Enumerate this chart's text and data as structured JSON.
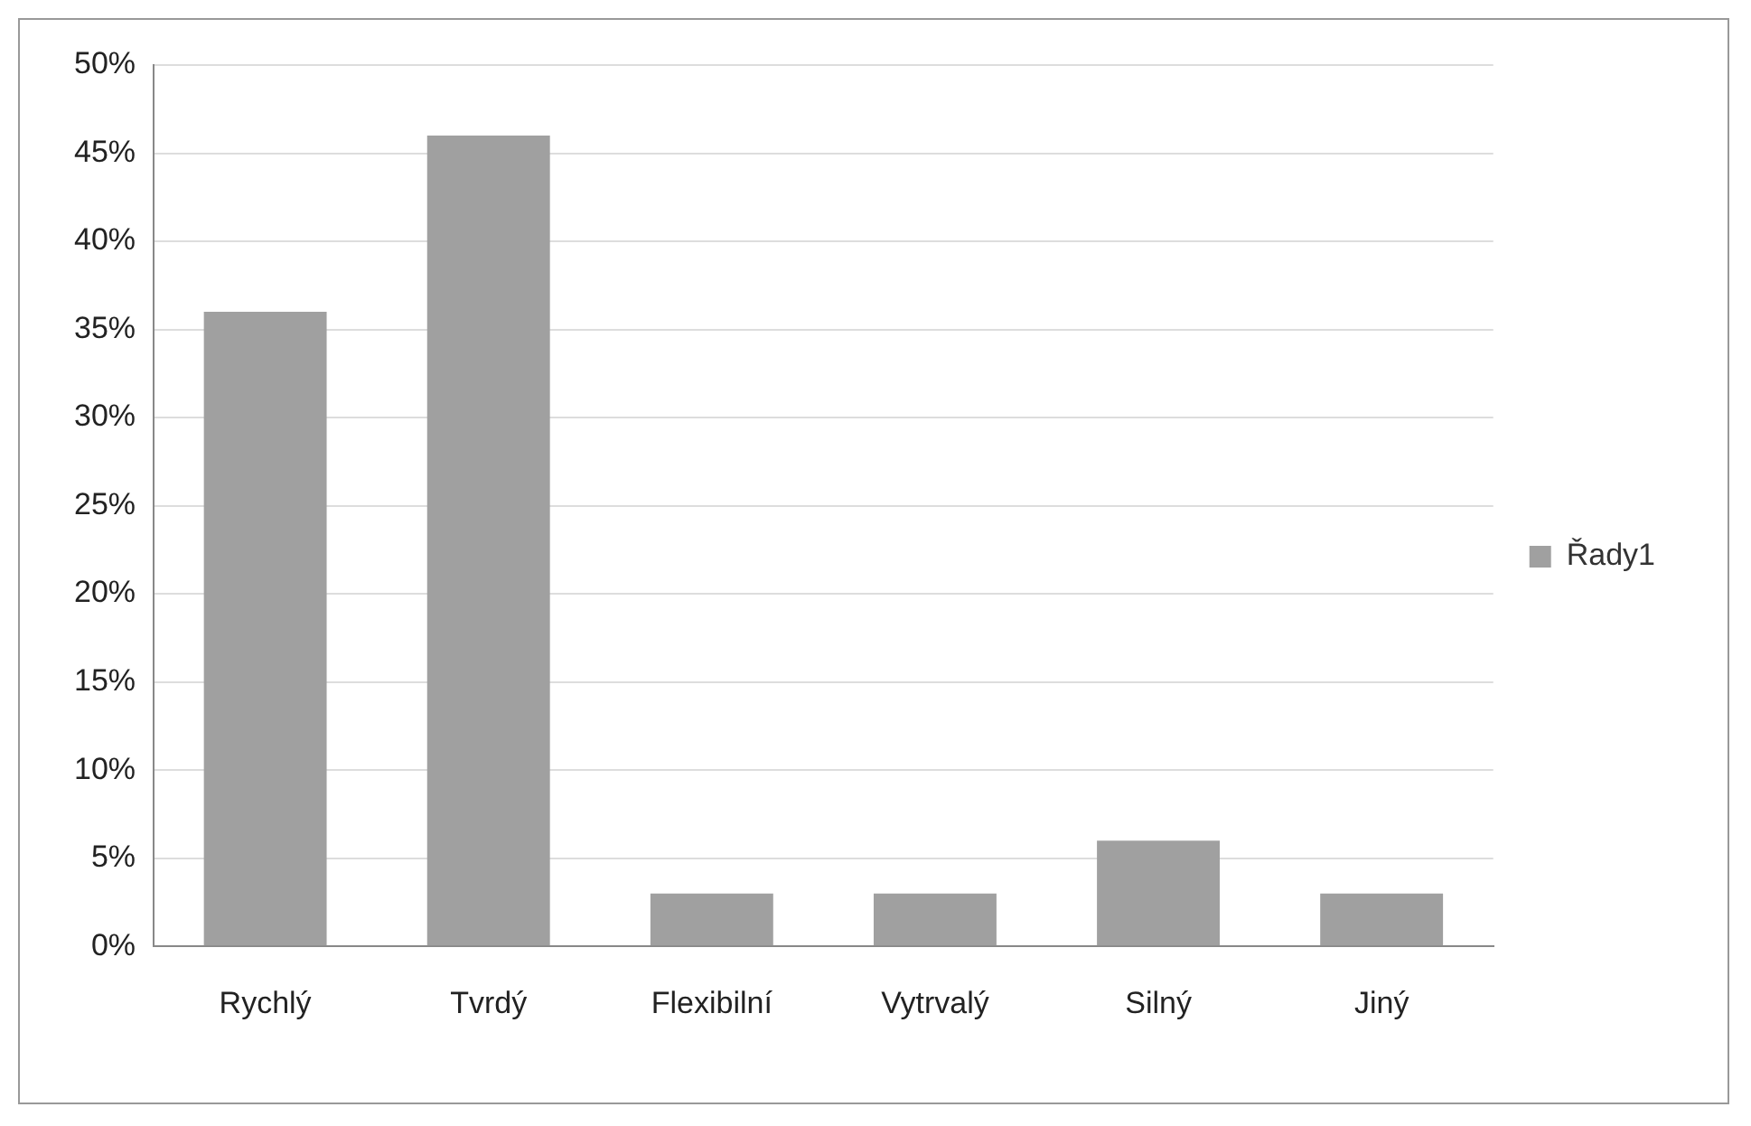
{
  "chart_data": {
    "type": "bar",
    "categories": [
      "Rychlý",
      "Tvrdý",
      "Flexibilní",
      "Vytrvalý",
      "Silný",
      "Jiný"
    ],
    "series": [
      {
        "name": "Řady1",
        "color": "#a0a0a0",
        "values": [
          36,
          46,
          3,
          3,
          6,
          3
        ]
      }
    ],
    "ylim": [
      0,
      50
    ],
    "yticks": [
      {
        "value": 0,
        "label": "0%"
      },
      {
        "value": 5,
        "label": "5%"
      },
      {
        "value": 10,
        "label": "10%"
      },
      {
        "value": 15,
        "label": "15%"
      },
      {
        "value": 20,
        "label": "20%"
      },
      {
        "value": 25,
        "label": "25%"
      },
      {
        "value": 30,
        "label": "30%"
      },
      {
        "value": 35,
        "label": "35%"
      },
      {
        "value": 40,
        "label": "40%"
      },
      {
        "value": 45,
        "label": "45%"
      },
      {
        "value": 50,
        "label": "50%"
      }
    ],
    "grid": "y",
    "legend": "right"
  }
}
